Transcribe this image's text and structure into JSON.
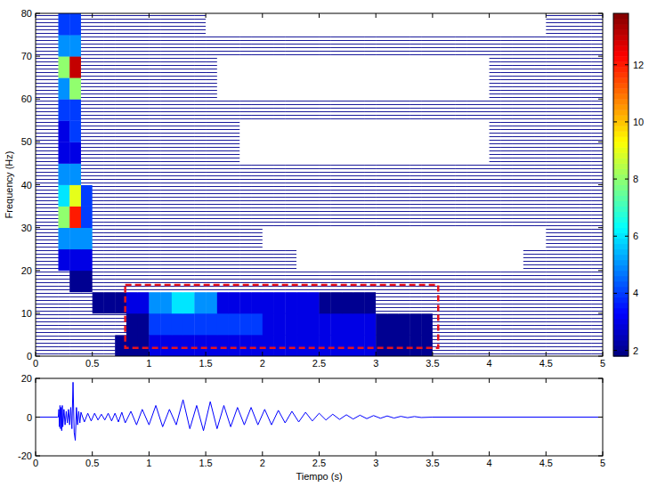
{
  "chart_data": [
    {
      "type": "heatmap",
      "ylabel": "Frequency (Hz)",
      "xlim": [
        0,
        5
      ],
      "ylim": [
        0,
        80
      ],
      "xticks": [
        0,
        0.5,
        1,
        1.5,
        2,
        2.5,
        3,
        3.5,
        4,
        4.5,
        5
      ],
      "yticks": [
        0,
        10,
        20,
        30,
        40,
        50,
        60,
        70,
        80
      ],
      "cells": [
        [
          1,
          1,
          1,
          1,
          1,
          1,
          1,
          2,
          2,
          2,
          3,
          3,
          3,
          3,
          3,
          3,
          3,
          3,
          3,
          3,
          3,
          3,
          3,
          3,
          3,
          3,
          3,
          3,
          3,
          3,
          2,
          2,
          2,
          2,
          2,
          1,
          1,
          1,
          1,
          1,
          1,
          1,
          1,
          1,
          1,
          1,
          1,
          1,
          1,
          1
        ],
        [
          1,
          1,
          1,
          1,
          1,
          1,
          1,
          1,
          2,
          2,
          4,
          4,
          4,
          4,
          4,
          4,
          4,
          4,
          4,
          4,
          3,
          3,
          3,
          3,
          3,
          3,
          3,
          3,
          3,
          3,
          2,
          2,
          2,
          2,
          2,
          1,
          1,
          1,
          1,
          1,
          1,
          1,
          1,
          1,
          1,
          1,
          1,
          1,
          1,
          1
        ],
        [
          1,
          1,
          1,
          1,
          1,
          2,
          2,
          2,
          3,
          3,
          5,
          5,
          6,
          6,
          5,
          5,
          3,
          3,
          3,
          3,
          3,
          3,
          3,
          3,
          3,
          2,
          2,
          2,
          2,
          2,
          1,
          1,
          1,
          1,
          1,
          1,
          1,
          1,
          1,
          1,
          1,
          1,
          1,
          1,
          1,
          1,
          1,
          1,
          1,
          1
        ],
        [
          1,
          1,
          1,
          2,
          2,
          1,
          1,
          1,
          1,
          1,
          1,
          1,
          1,
          1,
          1,
          1,
          1,
          1,
          1,
          1,
          1,
          1,
          1,
          1,
          1,
          1,
          1,
          1,
          1,
          1,
          1,
          1,
          1,
          1,
          1,
          1,
          1,
          1,
          1,
          1,
          1,
          1,
          1,
          1,
          1,
          1,
          1,
          1,
          1,
          1
        ],
        [
          1,
          1,
          3,
          3,
          3,
          1,
          1,
          1,
          1,
          1,
          1,
          1,
          1,
          1,
          1,
          1,
          1,
          1,
          1,
          1,
          1,
          1,
          1,
          0,
          0,
          0,
          0,
          0,
          0,
          0,
          0,
          0,
          0,
          0,
          0,
          0,
          0,
          0,
          0,
          0,
          0,
          0,
          0,
          1,
          1,
          1,
          1,
          1,
          1,
          1
        ],
        [
          1,
          1,
          5,
          5,
          5,
          1,
          1,
          1,
          1,
          1,
          1,
          1,
          1,
          1,
          1,
          1,
          1,
          1,
          1,
          1,
          0,
          0,
          0,
          0,
          0,
          0,
          0,
          0,
          0,
          0,
          0,
          0,
          0,
          0,
          0,
          0,
          0,
          0,
          0,
          0,
          0,
          0,
          0,
          0,
          0,
          1,
          1,
          1,
          1,
          1
        ],
        [
          1,
          1,
          8,
          12,
          4,
          1,
          1,
          1,
          1,
          1,
          1,
          1,
          1,
          1,
          1,
          1,
          1,
          1,
          1,
          1,
          1,
          1,
          1,
          1,
          1,
          1,
          1,
          1,
          1,
          1,
          1,
          1,
          1,
          1,
          1,
          1,
          1,
          1,
          1,
          1,
          1,
          1,
          1,
          1,
          1,
          1,
          1,
          1,
          1,
          1
        ],
        [
          1,
          1,
          6,
          9,
          4,
          1,
          1,
          1,
          1,
          1,
          1,
          1,
          1,
          1,
          1,
          1,
          1,
          1,
          1,
          1,
          1,
          1,
          1,
          1,
          1,
          1,
          1,
          1,
          1,
          1,
          1,
          1,
          1,
          1,
          1,
          1,
          1,
          1,
          1,
          1,
          1,
          1,
          1,
          1,
          1,
          1,
          1,
          1,
          1,
          1
        ],
        [
          1,
          1,
          5,
          5,
          1,
          1,
          1,
          1,
          1,
          1,
          1,
          1,
          1,
          1,
          1,
          1,
          1,
          1,
          1,
          1,
          1,
          1,
          1,
          1,
          1,
          1,
          1,
          1,
          1,
          1,
          1,
          1,
          1,
          1,
          1,
          1,
          1,
          1,
          1,
          1,
          1,
          1,
          1,
          1,
          1,
          1,
          1,
          1,
          1,
          1
        ],
        [
          1,
          1,
          3,
          3,
          1,
          1,
          1,
          1,
          1,
          1,
          1,
          1,
          1,
          1,
          1,
          1,
          1,
          1,
          0,
          0,
          0,
          0,
          0,
          0,
          0,
          0,
          0,
          0,
          0,
          0,
          0,
          0,
          0,
          0,
          0,
          0,
          0,
          0,
          0,
          0,
          1,
          1,
          1,
          1,
          1,
          1,
          1,
          1,
          1,
          1
        ],
        [
          1,
          1,
          3,
          4,
          1,
          1,
          1,
          1,
          1,
          1,
          1,
          1,
          1,
          1,
          1,
          1,
          1,
          1,
          0,
          0,
          0,
          0,
          0,
          0,
          0,
          0,
          0,
          0,
          0,
          0,
          0,
          0,
          0,
          0,
          0,
          0,
          0,
          0,
          0,
          0,
          1,
          1,
          1,
          1,
          1,
          1,
          1,
          1,
          1,
          1
        ],
        [
          1,
          1,
          4,
          4,
          1,
          1,
          1,
          1,
          1,
          1,
          1,
          1,
          1,
          1,
          1,
          1,
          1,
          1,
          1,
          1,
          1,
          1,
          1,
          1,
          1,
          1,
          1,
          1,
          1,
          1,
          1,
          1,
          1,
          1,
          1,
          1,
          1,
          1,
          1,
          1,
          1,
          1,
          1,
          1,
          1,
          1,
          1,
          1,
          1,
          1
        ],
        [
          1,
          1,
          5,
          8,
          1,
          1,
          1,
          1,
          1,
          1,
          1,
          1,
          1,
          1,
          1,
          1,
          0,
          0,
          0,
          0,
          0,
          0,
          0,
          0,
          0,
          0,
          0,
          0,
          0,
          0,
          0,
          0,
          0,
          0,
          0,
          0,
          0,
          0,
          0,
          0,
          1,
          1,
          1,
          1,
          1,
          1,
          1,
          1,
          1,
          1
        ],
        [
          1,
          1,
          8,
          13,
          1,
          1,
          1,
          1,
          1,
          1,
          1,
          1,
          1,
          1,
          1,
          1,
          0,
          0,
          0,
          0,
          0,
          0,
          0,
          0,
          0,
          0,
          0,
          0,
          0,
          0,
          0,
          0,
          0,
          0,
          0,
          0,
          0,
          0,
          0,
          0,
          1,
          1,
          1,
          1,
          1,
          1,
          1,
          1,
          1,
          1
        ],
        [
          1,
          1,
          5,
          5,
          1,
          1,
          1,
          1,
          1,
          1,
          1,
          1,
          1,
          1,
          1,
          1,
          1,
          1,
          1,
          1,
          1,
          1,
          1,
          1,
          1,
          1,
          1,
          1,
          1,
          1,
          1,
          1,
          1,
          1,
          1,
          1,
          1,
          1,
          1,
          1,
          1,
          1,
          1,
          1,
          1,
          1,
          1,
          1,
          1,
          1
        ],
        [
          1,
          1,
          4,
          4,
          1,
          1,
          1,
          1,
          1,
          1,
          1,
          1,
          1,
          1,
          1,
          0,
          0,
          0,
          0,
          0,
          0,
          0,
          0,
          0,
          0,
          0,
          0,
          0,
          0,
          0,
          0,
          0,
          0,
          0,
          0,
          0,
          0,
          0,
          0,
          0,
          0,
          0,
          0,
          0,
          0,
          1,
          1,
          1,
          1,
          1
        ]
      ],
      "colorbar": {
        "range": [
          1.8,
          13.8
        ],
        "ticks": [
          2,
          4,
          6,
          8,
          10,
          12
        ]
      },
      "highlight": {
        "x": [
          0.79,
          3.55
        ],
        "y": [
          1.9,
          16.6
        ],
        "color": "#e8141c"
      }
    },
    {
      "type": "line",
      "xlabel": "Tiempo (s)",
      "xlim": [
        0,
        5
      ],
      "ylim": [
        -20,
        20
      ],
      "xticks": [
        0,
        0.5,
        1,
        1.5,
        2,
        2.5,
        3,
        3.5,
        4,
        4.5,
        5
      ],
      "yticks": [
        -20,
        0,
        20
      ],
      "color": "#0000ff",
      "x": [
        0,
        0.19,
        0.2,
        0.205,
        0.21,
        0.215,
        0.22,
        0.225,
        0.23,
        0.235,
        0.24,
        0.25,
        0.26,
        0.27,
        0.28,
        0.29,
        0.3,
        0.31,
        0.32,
        0.33,
        0.34,
        0.35,
        0.36,
        0.37,
        0.38,
        0.39,
        0.4,
        0.43,
        0.46,
        0.49,
        0.52,
        0.55,
        0.58,
        0.61,
        0.64,
        0.67,
        0.7,
        0.73,
        0.76,
        0.79,
        0.84,
        0.89,
        0.94,
        1,
        1.06,
        1.12,
        1.18,
        1.24,
        1.3,
        1.36,
        1.42,
        1.48,
        1.54,
        1.6,
        1.66,
        1.72,
        1.78,
        1.84,
        1.9,
        1.96,
        2.02,
        2.08,
        2.14,
        2.2,
        2.26,
        2.32,
        2.38,
        2.44,
        2.5,
        2.56,
        2.62,
        2.68,
        2.74,
        2.8,
        2.86,
        2.92,
        2.98,
        3.04,
        3.1,
        3.16,
        3.22,
        3.28,
        3.34,
        3.4,
        3.5,
        5
      ],
      "values": [
        0,
        0,
        0,
        4,
        -5,
        6,
        -6,
        5,
        -7,
        6,
        -5,
        4,
        -4,
        3,
        -3,
        4,
        -4,
        5,
        -6,
        18,
        -8,
        -12,
        5,
        -4,
        3,
        -3,
        2.5,
        -2.5,
        2,
        -2,
        2,
        -1.5,
        1.5,
        -1.5,
        2,
        -2,
        2,
        -2.5,
        2.5,
        -3,
        3,
        -4,
        4,
        -4,
        6,
        -5,
        4,
        -4,
        9,
        -6,
        6,
        -7,
        8,
        -6,
        6,
        -5,
        5,
        -4,
        5,
        -4,
        4,
        -4,
        3.5,
        -3,
        3,
        -2.5,
        2.5,
        -2,
        2,
        -1.5,
        1.5,
        -1.2,
        1.2,
        -1,
        1,
        -0.8,
        0.8,
        -0.6,
        0.6,
        -0.5,
        0.4,
        -0.3,
        0.3,
        -0.2,
        0,
        0
      ]
    }
  ]
}
